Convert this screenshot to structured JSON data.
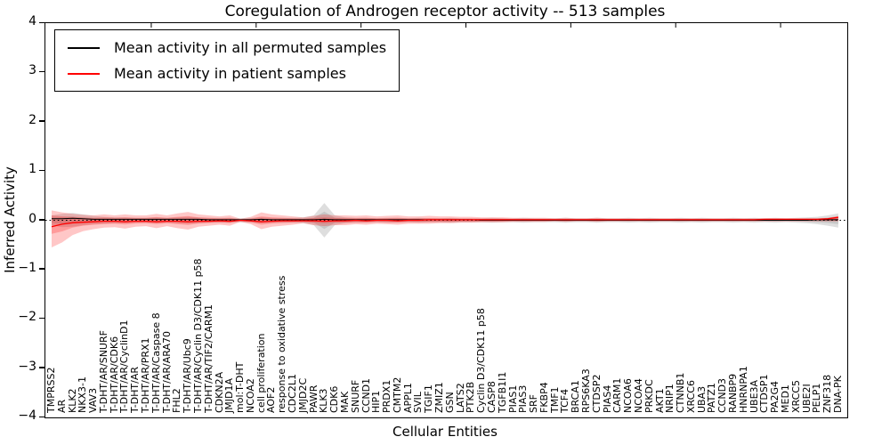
{
  "figure": {
    "title": "Coregulation of Androgen receptor activity -- 513 samples",
    "xlabel": "Cellular Entities",
    "ylabel": "Inferred Activity"
  },
  "chart_data": {
    "type": "line",
    "title": "Coregulation of Androgen receptor activity -- 513 samples",
    "xlabel": "Cellular Entities",
    "ylabel": "Inferred Activity",
    "ylim": [
      -4,
      4
    ],
    "yticks": [
      4,
      3,
      2,
      1,
      0,
      -1,
      -2,
      -3,
      -4
    ],
    "ytick_labels": [
      "4",
      "3",
      "2",
      "1",
      "0",
      "−1",
      "−2",
      "−3",
      "−4"
    ],
    "grid": false,
    "legend_position": "upper left",
    "zero_line": {
      "value": 0,
      "style": "dotted",
      "color": "#000000"
    },
    "categories": [
      "TMPRSS2",
      "AR",
      "KLK2",
      "NKX3-1",
      "VAV3",
      "T-DHT/AR/SNURF",
      "T-DHT/AR/CDK6",
      "T-DHT/AR/CyclinD1",
      "T-DHT/AR",
      "T-DHT/AR/PRX1",
      "T-DHT/AR/Caspase 8",
      "T-DHT/AR/ARA70",
      "FHL2",
      "T-DHT/AR/Ubc9",
      "T-DHT/AR/Cyclin D3/CDK11 p58",
      "T-DHT/AR/TIF2/CARM1",
      "CDKN2A",
      "JMJD1A",
      "mol:T-DHT",
      "NCOA2",
      "cell proliferation",
      "AOF2",
      "response to oxidative stress",
      "CDC2L1",
      "JMJD2C",
      "PAWR",
      "KLK3",
      "CDK6",
      "MAK",
      "SNURF",
      "CCND1",
      "HIP1",
      "PRDX1",
      "CMTM2",
      "APPL1",
      "SVIL",
      "TGIF1",
      "ZMIZ1",
      "GSN",
      "LATS2",
      "PTK2B",
      "Cyclin D3/CDK11 p58",
      "CASP8",
      "TGFB1I1",
      "PIAS1",
      "PIAS3",
      "SRF",
      "FKBP4",
      "TMF1",
      "TCF4",
      "BRCA1",
      "RPS6KA3",
      "CTDSP2",
      "PIAS4",
      "CARM1",
      "NCOA6",
      "NCOA4",
      "PRKDC",
      "AKT1",
      "NRIP1",
      "CTNNB1",
      "XRCC6",
      "UBA3",
      "PATZ1",
      "CCND3",
      "RANBP9",
      "HNRNPA1",
      "UBE3A",
      "CTDSP1",
      "PA2G4",
      "MED1",
      "XRCC5",
      "UBE2I",
      "PELP1",
      "ZNF318",
      "DNA-PK"
    ],
    "series": [
      {
        "name": "Mean activity in all permuted samples",
        "color": "#000000",
        "values": [
          0.03,
          0.03,
          0.04,
          0.03,
          0.02,
          0.02,
          0.02,
          0.02,
          0.02,
          0.02,
          0.02,
          0.02,
          0.02,
          0.02,
          0.02,
          0.01,
          0.01,
          0.01,
          0.01,
          0.01,
          0.02,
          0.01,
          0.01,
          0.01,
          0.01,
          0.01,
          0.02,
          0.01,
          0.01,
          0.01,
          0.01,
          0.01,
          0.01,
          0.01,
          0.01,
          0.01,
          0.01,
          0.01,
          0.01,
          0.01,
          0.01,
          0.0,
          0.0,
          0.0,
          0.0,
          0.0,
          0.0,
          0.0,
          0.0,
          0.0,
          0.0,
          0.0,
          0.0,
          0.0,
          0.0,
          0.0,
          0.0,
          0.0,
          0.0,
          0.0,
          0.0,
          0.0,
          0.0,
          0.0,
          0.0,
          0.0,
          0.0,
          0.0,
          0.0,
          0.0,
          0.0,
          0.0,
          0.0,
          0.01,
          0.01,
          0.01
        ]
      },
      {
        "name": "Mean activity in patient samples",
        "color": "#ff0000",
        "values": [
          -0.13,
          -0.08,
          -0.05,
          -0.04,
          -0.03,
          -0.02,
          -0.02,
          -0.03,
          -0.02,
          -0.02,
          -0.03,
          -0.02,
          -0.02,
          -0.03,
          -0.02,
          -0.02,
          -0.01,
          -0.02,
          0.0,
          -0.01,
          -0.03,
          -0.02,
          -0.01,
          -0.01,
          -0.01,
          -0.01,
          -0.02,
          -0.01,
          -0.01,
          0.0,
          -0.01,
          0.0,
          0.0,
          -0.01,
          0.0,
          0.0,
          0.01,
          0.01,
          0.01,
          0.01,
          0.01,
          0.01,
          0.01,
          0.01,
          0.01,
          0.01,
          0.01,
          0.01,
          0.01,
          0.01,
          0.01,
          0.01,
          0.01,
          0.01,
          0.01,
          0.01,
          0.01,
          0.01,
          0.01,
          0.01,
          0.01,
          0.01,
          0.01,
          0.01,
          0.01,
          0.01,
          0.01,
          0.01,
          0.02,
          0.02,
          0.02,
          0.02,
          0.02,
          0.02,
          0.03,
          0.06
        ]
      }
    ],
    "bands": [
      {
        "name": "permuted-range",
        "color": "#888888",
        "opacity": 0.28,
        "upper": [
          0.1,
          0.13,
          0.15,
          0.12,
          0.09,
          0.07,
          0.06,
          0.06,
          0.05,
          0.05,
          0.06,
          0.05,
          0.06,
          0.07,
          0.06,
          0.05,
          0.05,
          0.05,
          0.04,
          0.05,
          0.06,
          0.05,
          0.05,
          0.05,
          0.06,
          0.1,
          0.35,
          0.1,
          0.06,
          0.05,
          0.05,
          0.04,
          0.05,
          0.05,
          0.04,
          0.05,
          0.04,
          0.04,
          0.05,
          0.04,
          0.04,
          0.04,
          0.05,
          0.04,
          0.04,
          0.05,
          0.04,
          0.04,
          0.04,
          0.05,
          0.04,
          0.04,
          0.05,
          0.04,
          0.04,
          0.05,
          0.04,
          0.05,
          0.04,
          0.04,
          0.05,
          0.04,
          0.05,
          0.04,
          0.04,
          0.05,
          0.04,
          0.05,
          0.04,
          0.05,
          0.04,
          0.05,
          0.06,
          0.07,
          0.1,
          0.14
        ],
        "lower": [
          -0.1,
          -0.14,
          -0.13,
          -0.1,
          -0.08,
          -0.07,
          -0.06,
          -0.06,
          -0.05,
          -0.05,
          -0.06,
          -0.05,
          -0.06,
          -0.07,
          -0.06,
          -0.05,
          -0.05,
          -0.05,
          -0.04,
          -0.05,
          -0.06,
          -0.05,
          -0.05,
          -0.05,
          -0.06,
          -0.1,
          -0.35,
          -0.1,
          -0.06,
          -0.05,
          -0.05,
          -0.04,
          -0.05,
          -0.05,
          -0.04,
          -0.05,
          -0.04,
          -0.04,
          -0.05,
          -0.04,
          -0.04,
          -0.04,
          -0.05,
          -0.04,
          -0.04,
          -0.05,
          -0.04,
          -0.04,
          -0.04,
          -0.05,
          -0.04,
          -0.04,
          -0.05,
          -0.04,
          -0.04,
          -0.05,
          -0.04,
          -0.05,
          -0.04,
          -0.04,
          -0.05,
          -0.04,
          -0.05,
          -0.04,
          -0.04,
          -0.05,
          -0.04,
          -0.05,
          -0.04,
          -0.05,
          -0.04,
          -0.05,
          -0.06,
          -0.08,
          -0.11,
          -0.15
        ]
      },
      {
        "name": "patient-range",
        "color": "#ff0000",
        "opacity": 0.22,
        "upper": [
          0.2,
          0.16,
          0.13,
          0.11,
          0.1,
          0.12,
          0.1,
          0.12,
          0.1,
          0.1,
          0.13,
          0.1,
          0.14,
          0.17,
          0.12,
          0.1,
          0.08,
          0.1,
          0.03,
          0.07,
          0.16,
          0.12,
          0.1,
          0.08,
          0.06,
          0.09,
          0.12,
          0.1,
          0.1,
          0.09,
          0.1,
          0.08,
          0.09,
          0.1,
          0.08,
          0.08,
          0.09,
          0.08,
          0.08,
          0.07,
          0.07,
          0.06,
          0.06,
          0.06,
          0.05,
          0.05,
          0.05,
          0.05,
          0.04,
          0.05,
          0.04,
          0.04,
          0.05,
          0.04,
          0.04,
          0.04,
          0.04,
          0.04,
          0.04,
          0.04,
          0.04,
          0.04,
          0.04,
          0.04,
          0.04,
          0.04,
          0.04,
          0.04,
          0.04,
          0.04,
          0.04,
          0.04,
          0.04,
          0.04,
          0.05,
          0.09
        ],
        "lower": [
          -0.55,
          -0.45,
          -0.3,
          -0.22,
          -0.18,
          -0.15,
          -0.14,
          -0.17,
          -0.13,
          -0.12,
          -0.16,
          -0.12,
          -0.16,
          -0.19,
          -0.13,
          -0.11,
          -0.09,
          -0.11,
          -0.03,
          -0.08,
          -0.18,
          -0.13,
          -0.11,
          -0.09,
          -0.06,
          -0.1,
          -0.12,
          -0.1,
          -0.1,
          -0.08,
          -0.09,
          -0.07,
          -0.08,
          -0.09,
          -0.07,
          -0.07,
          -0.07,
          -0.06,
          -0.06,
          -0.05,
          -0.05,
          -0.04,
          -0.04,
          -0.04,
          -0.03,
          -0.03,
          -0.03,
          -0.03,
          -0.02,
          -0.03,
          -0.02,
          -0.02,
          -0.03,
          -0.02,
          -0.02,
          -0.02,
          -0.02,
          -0.02,
          -0.02,
          -0.02,
          -0.02,
          -0.02,
          -0.02,
          -0.02,
          -0.02,
          -0.02,
          -0.02,
          -0.02,
          -0.02,
          -0.02,
          -0.02,
          -0.02,
          -0.02,
          -0.02,
          -0.02,
          -0.02
        ]
      }
    ]
  }
}
